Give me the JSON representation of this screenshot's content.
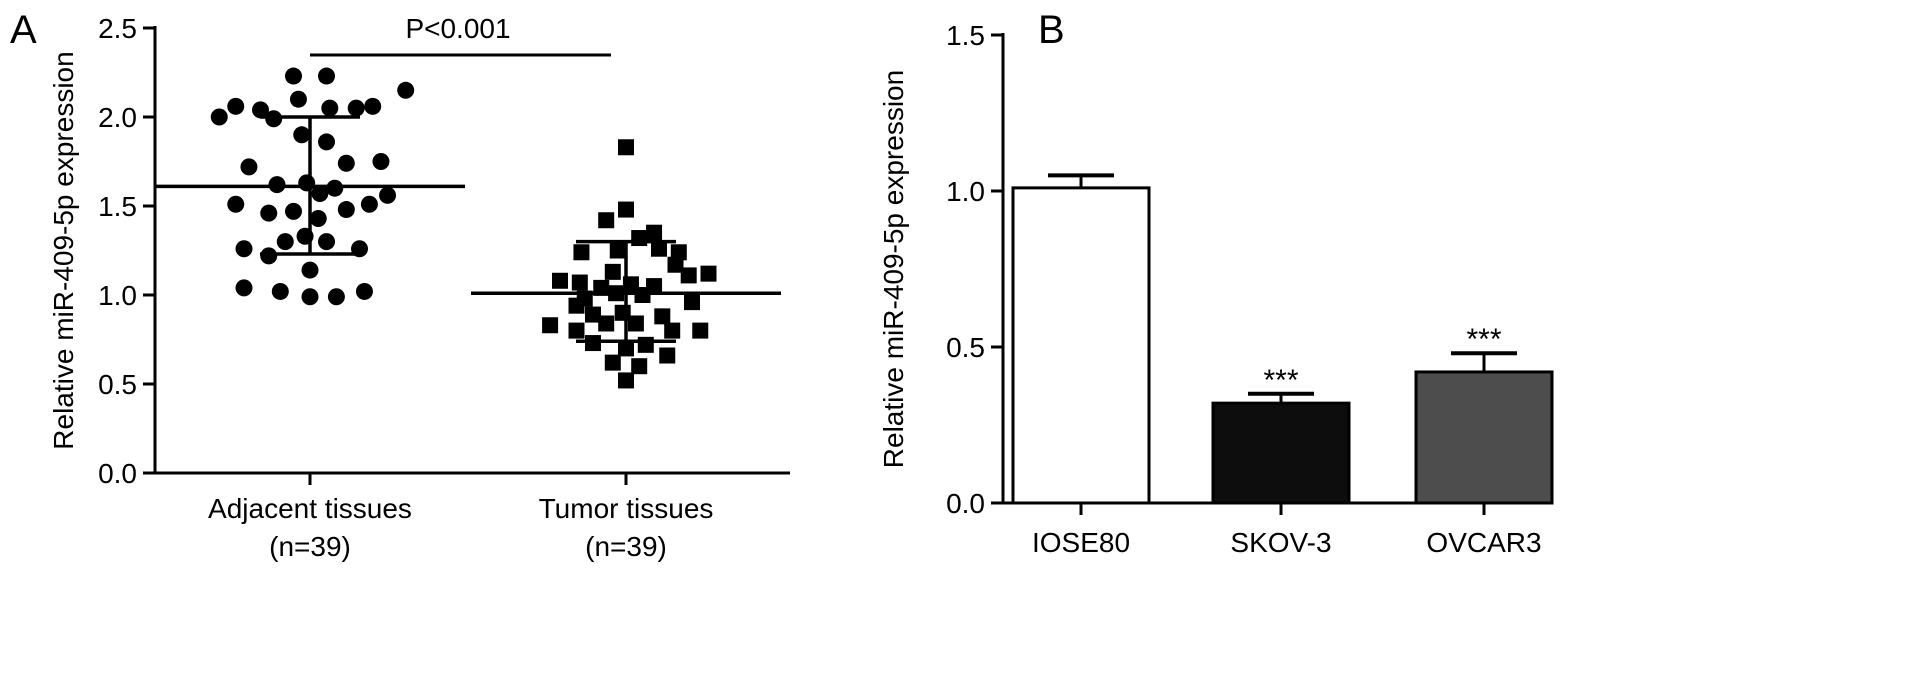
{
  "panels": {
    "a": "A",
    "b": "B"
  },
  "chart_data": [
    {
      "type": "scatter",
      "panel": "A",
      "ylabel": "Relative miR-409-5p expression",
      "ylim": [
        0,
        2.5
      ],
      "yticks": [
        "0.0",
        "0.5",
        "1.0",
        "1.5",
        "2.0",
        "2.5"
      ],
      "categories": [
        {
          "name": "Adjacent tissues",
          "n": "(n=39)"
        },
        {
          "name": "Tumor tissues",
          "n": "(n=39)"
        }
      ],
      "annotation": "P<0.001",
      "series": [
        {
          "name": "Adjacent tissues",
          "marker": "circle",
          "mean": 1.61,
          "sd_low": 1.23,
          "sd_high": 2.0,
          "points": [
            [
              -0.1,
              2.23
            ],
            [
              0.1,
              2.23
            ],
            [
              -0.45,
              2.06
            ],
            [
              -0.3,
              2.04
            ],
            [
              0.38,
              2.06
            ],
            [
              0.58,
              2.15
            ],
            [
              -0.07,
              2.1
            ],
            [
              -0.22,
              1.99
            ],
            [
              0.12,
              2.05
            ],
            [
              0.28,
              2.05
            ],
            [
              -0.37,
              1.72
            ],
            [
              0.22,
              1.74
            ],
            [
              0.43,
              1.75
            ],
            [
              -0.05,
              1.9
            ],
            [
              0.1,
              1.86
            ],
            [
              -0.45,
              1.51
            ],
            [
              -0.2,
              1.62
            ],
            [
              -0.02,
              1.63
            ],
            [
              0.15,
              1.6
            ],
            [
              0.47,
              1.56
            ],
            [
              -0.25,
              1.46
            ],
            [
              -0.1,
              1.47
            ],
            [
              0.05,
              1.43
            ],
            [
              0.22,
              1.48
            ],
            [
              0.36,
              1.51
            ],
            [
              -0.4,
              1.26
            ],
            [
              -0.15,
              1.3
            ],
            [
              0.1,
              1.3
            ],
            [
              0.3,
              1.26
            ],
            [
              -0.25,
              1.22
            ],
            [
              -0.03,
              1.33
            ],
            [
              0.0,
              1.14
            ],
            [
              -0.4,
              1.04
            ],
            [
              -0.18,
              1.02
            ],
            [
              0.0,
              0.99
            ],
            [
              0.16,
              0.99
            ],
            [
              0.33,
              1.02
            ],
            [
              -0.55,
              2.0
            ],
            [
              0.06,
              1.57
            ]
          ]
        },
        {
          "name": "Tumor tissues",
          "marker": "square",
          "mean": 1.01,
          "sd_low": 0.74,
          "sd_high": 1.3,
          "points": [
            [
              0.0,
              1.83
            ],
            [
              -0.12,
              1.42
            ],
            [
              0.0,
              1.48
            ],
            [
              0.17,
              1.35
            ],
            [
              0.08,
              1.32
            ],
            [
              -0.27,
              1.24
            ],
            [
              -0.05,
              1.25
            ],
            [
              0.2,
              1.26
            ],
            [
              0.32,
              1.24
            ],
            [
              -0.08,
              1.13
            ],
            [
              0.3,
              1.17
            ],
            [
              -0.4,
              1.08
            ],
            [
              -0.28,
              1.07
            ],
            [
              0.38,
              1.11
            ],
            [
              0.5,
              1.12
            ],
            [
              -0.25,
              0.98
            ],
            [
              -0.15,
              1.04
            ],
            [
              0.03,
              1.06
            ],
            [
              0.17,
              1.05
            ],
            [
              -0.3,
              0.94
            ],
            [
              -0.06,
              1.01
            ],
            [
              0.1,
              1.0
            ],
            [
              0.4,
              0.96
            ],
            [
              -0.46,
              0.83
            ],
            [
              -0.2,
              0.89
            ],
            [
              -0.02,
              0.9
            ],
            [
              0.22,
              0.88
            ],
            [
              0.45,
              0.8
            ],
            [
              -0.3,
              0.8
            ],
            [
              -0.12,
              0.84
            ],
            [
              0.06,
              0.84
            ],
            [
              0.28,
              0.8
            ],
            [
              -0.2,
              0.73
            ],
            [
              0.0,
              0.7
            ],
            [
              0.12,
              0.72
            ],
            [
              -0.08,
              0.62
            ],
            [
              0.08,
              0.6
            ],
            [
              0.25,
              0.66
            ],
            [
              0.0,
              0.52
            ]
          ]
        }
      ]
    },
    {
      "type": "bar",
      "panel": "B",
      "ylabel": "Relative miR-409-5p expression",
      "ylim": [
        0,
        1.5
      ],
      "yticks": [
        "0.0",
        "0.5",
        "1.0",
        "1.5"
      ],
      "categories": [
        "IOSE80",
        "SKOV-3",
        "OVCAR3"
      ],
      "values": [
        1.01,
        0.32,
        0.42
      ],
      "errors": [
        0.04,
        0.03,
        0.06
      ],
      "colors": [
        "#ffffff",
        "#0d0d0d",
        "#4d4d4d"
      ],
      "significance": [
        "",
        "***",
        "***"
      ]
    }
  ]
}
